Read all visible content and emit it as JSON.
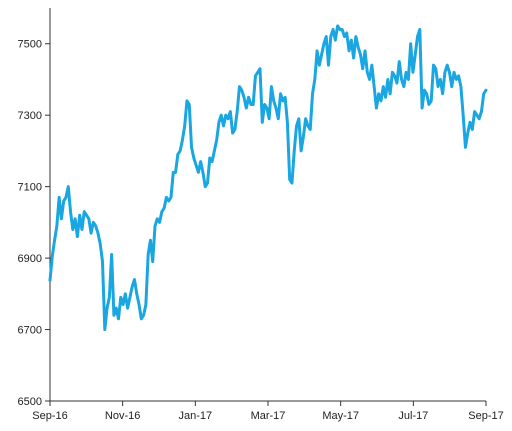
{
  "chart_data": {
    "type": "line",
    "title": "",
    "xlabel": "",
    "ylabel": "",
    "ylim": [
      6500,
      7600
    ],
    "yticks": [
      6500,
      6700,
      6900,
      7100,
      7300,
      7500
    ],
    "x_ticks": [
      "Sep-16",
      "Nov-16",
      "Jan-17",
      "Mar-17",
      "May-17",
      "Jul-17",
      "Sep-17"
    ],
    "grid": false,
    "legend": "none",
    "color": "#1aa6e0",
    "series": [
      {
        "values": [
          6838,
          6905,
          6950,
          6990,
          7070,
          7010,
          7060,
          7070,
          7100,
          7030,
          6980,
          7010,
          6960,
          7020,
          6980,
          7030,
          7020,
          7010,
          6970,
          7000,
          6990,
          6970,
          6940,
          6890,
          6700,
          6760,
          6790,
          6910,
          6740,
          6760,
          6730,
          6790,
          6770,
          6800,
          6760,
          6790,
          6820,
          6840,
          6800,
          6770,
          6730,
          6740,
          6770,
          6910,
          6950,
          6890,
          6990,
          7010,
          7000,
          7030,
          7040,
          7070,
          7060,
          7070,
          7140,
          7140,
          7190,
          7200,
          7230,
          7270,
          7340,
          7330,
          7210,
          7180,
          7160,
          7140,
          7170,
          7140,
          7100,
          7110,
          7180,
          7170,
          7200,
          7230,
          7280,
          7300,
          7270,
          7300,
          7290,
          7310,
          7250,
          7260,
          7310,
          7380,
          7370,
          7350,
          7320,
          7350,
          7330,
          7330,
          7410,
          7420,
          7430,
          7280,
          7330,
          7320,
          7290,
          7380,
          7340,
          7320,
          7290,
          7360,
          7340,
          7350,
          7280,
          7120,
          7110,
          7200,
          7270,
          7290,
          7200,
          7240,
          7290,
          7270,
          7260,
          7360,
          7400,
          7480,
          7440,
          7470,
          7500,
          7520,
          7440,
          7520,
          7540,
          7510,
          7550,
          7540,
          7540,
          7520,
          7530,
          7480,
          7510,
          7460,
          7520,
          7490,
          7470,
          7430,
          7480,
          7420,
          7400,
          7440,
          7380,
          7320,
          7360,
          7340,
          7380,
          7350,
          7400,
          7360,
          7420,
          7410,
          7390,
          7450,
          7400,
          7380,
          7420,
          7400,
          7500,
          7420,
          7470,
          7520,
          7540,
          7320,
          7370,
          7360,
          7330,
          7340,
          7440,
          7430,
          7380,
          7400,
          7360,
          7420,
          7440,
          7420,
          7380,
          7420,
          7400,
          7410,
          7380,
          7300,
          7210,
          7250,
          7280,
          7260,
          7310,
          7300,
          7290,
          7310,
          7360,
          7370
        ]
      }
    ]
  }
}
